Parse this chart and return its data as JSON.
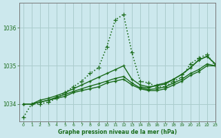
{
  "title": "Graphe pression niveau de la mer (hPa)",
  "bg_color": "#cce8ed",
  "grid_color": "#aacccc",
  "line_color": "#1a6b1a",
  "x_label_color": "#1a6b1a",
  "ylabel_ticks": [
    1034,
    1035,
    1036
  ],
  "xlim": [
    -0.5,
    23
  ],
  "ylim": [
    1033.55,
    1036.65
  ],
  "series": [
    {
      "x": [
        0,
        1,
        2,
        3,
        4,
        5,
        6,
        7,
        8,
        9,
        10,
        11,
        12,
        13,
        14,
        15,
        16,
        17,
        18,
        19,
        20,
        21,
        22,
        23
      ],
      "y": [
        1033.65,
        1034.0,
        1034.0,
        1034.05,
        1034.15,
        1034.3,
        1034.45,
        1034.6,
        1034.8,
        1034.95,
        1035.5,
        1036.2,
        1036.35,
        1035.35,
        1034.6,
        1034.55,
        1034.45,
        1034.45,
        1034.6,
        1034.7,
        1035.05,
        1035.2,
        1035.3,
        1035.0
      ],
      "style": "dotted",
      "marker": "+",
      "color": "#1a6b1a",
      "lw": 1.2,
      "ms": 4
    },
    {
      "x": [
        0,
        1,
        2,
        3,
        4,
        5,
        6,
        7,
        8,
        9,
        10,
        11,
        12,
        13,
        14,
        15,
        16,
        17,
        18,
        19,
        20,
        21,
        22,
        23
      ],
      "y": [
        1034.0,
        1034.0,
        1034.05,
        1034.1,
        1034.15,
        1034.2,
        1034.3,
        1034.35,
        1034.4,
        1034.45,
        1034.55,
        1034.6,
        1034.65,
        1034.5,
        1034.4,
        1034.35,
        1034.35,
        1034.4,
        1034.5,
        1034.6,
        1034.75,
        1034.85,
        1035.0,
        1035.0
      ],
      "style": "solid",
      "marker": "+",
      "color": "#1a6b1a",
      "lw": 1.0,
      "ms": 3
    },
    {
      "x": [
        0,
        1,
        2,
        3,
        4,
        5,
        6,
        7,
        8,
        9,
        10,
        11,
        12,
        13,
        14,
        15,
        16,
        17,
        18,
        19,
        20,
        21,
        22,
        23
      ],
      "y": [
        1034.0,
        1034.0,
        1034.05,
        1034.1,
        1034.18,
        1034.25,
        1034.33,
        1034.4,
        1034.47,
        1034.53,
        1034.6,
        1034.67,
        1034.72,
        1034.55,
        1034.42,
        1034.38,
        1034.4,
        1034.45,
        1034.55,
        1034.65,
        1034.8,
        1034.9,
        1035.05,
        1035.0
      ],
      "style": "solid",
      "marker": "+",
      "color": "#1a6b1a",
      "lw": 1.0,
      "ms": 3
    },
    {
      "x": [
        0,
        1,
        2,
        3,
        4,
        5,
        6,
        7,
        8,
        9,
        10,
        11,
        12,
        13,
        14,
        15,
        16,
        17,
        18,
        19,
        20,
        21,
        22,
        23
      ],
      "y": [
        1034.0,
        1034.0,
        1034.1,
        1034.15,
        1034.22,
        1034.3,
        1034.4,
        1034.5,
        1034.6,
        1034.7,
        1034.8,
        1034.9,
        1035.0,
        1034.65,
        1034.5,
        1034.45,
        1034.48,
        1034.52,
        1034.65,
        1034.78,
        1034.95,
        1035.15,
        1035.25,
        1035.05
      ],
      "style": "solid",
      "marker": "+",
      "color": "#1a6b1a",
      "lw": 1.0,
      "ms": 3
    },
    {
      "x": [
        14,
        15,
        16,
        17,
        18,
        19,
        20,
        21,
        22,
        23
      ],
      "y": [
        1034.45,
        1034.42,
        1034.5,
        1034.55,
        1034.65,
        1034.78,
        1034.95,
        1035.15,
        1035.25,
        1035.05
      ],
      "style": "solid",
      "marker": "+",
      "color": "#1a6b1a",
      "lw": 1.0,
      "ms": 3
    }
  ]
}
